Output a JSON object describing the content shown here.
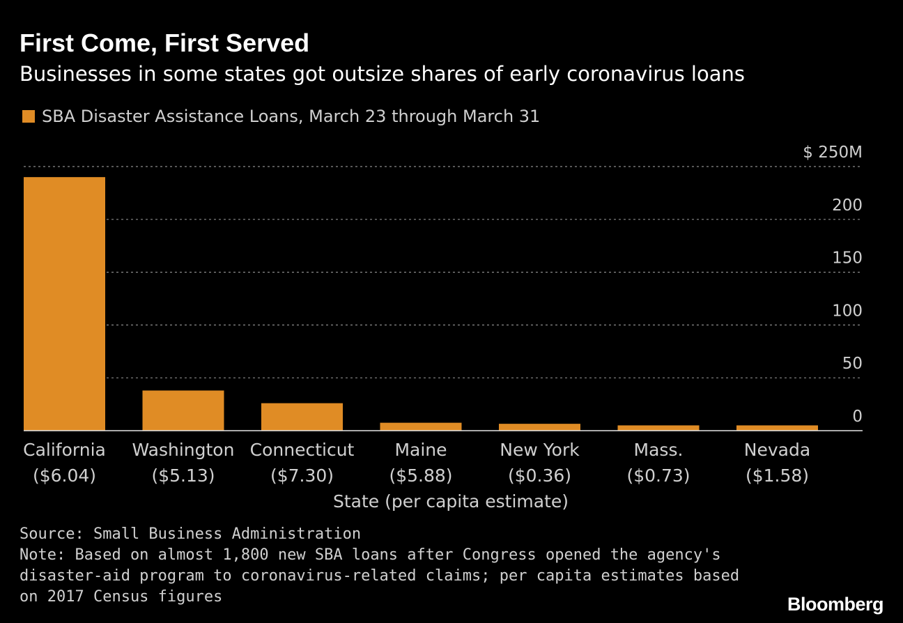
{
  "header": {
    "title": "First Come, First Served",
    "subtitle": "Businesses in some states got outsize shares of early coronavirus loans"
  },
  "legend": {
    "label": "SBA Disaster Assistance Loans, March 23 through March 31"
  },
  "colors": {
    "background": "#000000",
    "bar": "#e08c25",
    "grid": "#8c8c8c",
    "text": "#d0d0d0"
  },
  "chart_data": {
    "type": "bar",
    "categories": [
      "California",
      "Washington",
      "Connecticut",
      "Maine",
      "New York",
      "Mass.",
      "Nevada"
    ],
    "per_capita_labels": [
      "($6.04)",
      "($5.13)",
      "($7.30)",
      "($5.88)",
      "($0.36)",
      "($0.73)",
      "($1.58)"
    ],
    "series": [
      {
        "name": "SBA Disaster Assistance Loans, March 23 through March 31",
        "values": [
          240,
          38,
          26,
          7.5,
          6.5,
          5,
          5
        ]
      }
    ],
    "yticks": [
      0,
      50,
      100,
      150,
      200,
      250
    ],
    "ytick_labels": [
      "0",
      "50",
      "100",
      "150",
      "200",
      "$ 250M"
    ],
    "ylim": [
      0,
      250
    ],
    "xlabel": "State (per capita estimate)",
    "ylabel": "",
    "grid": true,
    "yaxis_side": "right",
    "legend_position": "top-left"
  },
  "footer": {
    "source": "Source: Small Business Administration\nNote: Based on almost 1,800 new SBA loans after Congress opened the agency's\ndisaster-aid program to coronavirus-related claims; per capita estimates based\non 2017 Census figures",
    "brand": "Bloomberg"
  }
}
